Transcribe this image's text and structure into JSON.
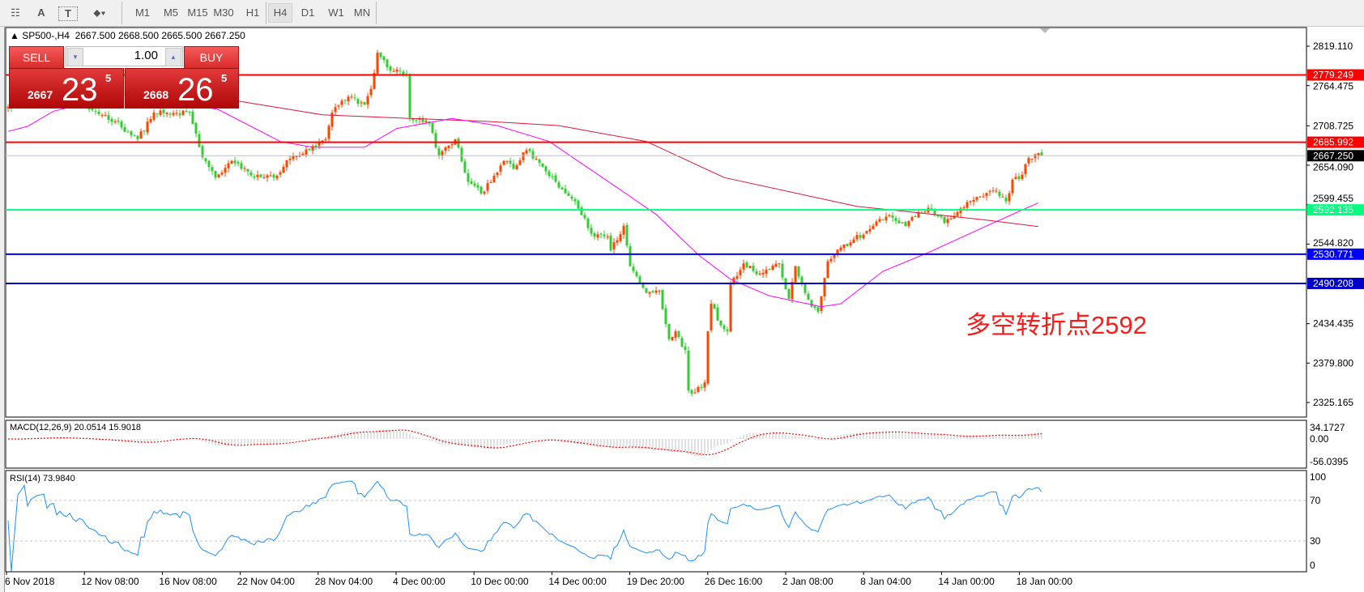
{
  "toolbar": {
    "tools": [
      {
        "name": "fibonacci-fan-icon",
        "glyph": "☷"
      },
      {
        "name": "text-icon",
        "glyph": "A"
      },
      {
        "name": "text-label-icon",
        "glyph": "T"
      },
      {
        "name": "arrows-icon",
        "glyph": "⬥▾"
      }
    ],
    "timeframes": [
      "M1",
      "M5",
      "M15",
      "M30",
      "H1",
      "H4",
      "D1",
      "W1",
      "MN"
    ],
    "selected_timeframe": "H4"
  },
  "chart": {
    "title": "SP500-,H4  2667.500 2668.500 2665.500 2667.250",
    "trade_panel": {
      "sell_label": "SELL",
      "buy_label": "BUY",
      "lot": "1.00",
      "sell_price": {
        "prefix": "2667",
        "big": "23",
        "sup": "5"
      },
      "buy_price": {
        "prefix": "2668",
        "big": "26",
        "sup": "5"
      }
    },
    "annotation": "多空转折点2592",
    "price_axis_ticks": [
      "2819.110",
      "2764.475",
      "2708.725",
      "2654.090",
      "2599.455",
      "2544.820",
      "2434.435",
      "2379.800",
      "2325.165"
    ],
    "price_lines": [
      {
        "label": "2779.249",
        "value": 2779.249,
        "color": "#ff0000",
        "text": "#ffffff"
      },
      {
        "label": "2685.992",
        "value": 2685.992,
        "color": "#ff0000",
        "text": "#ffffff"
      },
      {
        "label": "2592.135",
        "value": 2592.135,
        "color": "#00ff7f",
        "text": "#ffffff"
      },
      {
        "label": "2530.771",
        "value": 2530.771,
        "color": "#0000ff",
        "text": "#ffffff"
      },
      {
        "label": "2490.208",
        "value": 2490.208,
        "color": "#0000cd",
        "text": "#ffffff"
      }
    ],
    "bid_line": {
      "label": "2667.250",
      "value": 2667.25,
      "color": "#000000"
    },
    "time_labels": [
      "6 Nov 2018",
      "12 Nov 08:00",
      "16 Nov 08:00",
      "22 Nov 04:00",
      "28 Nov 04:00",
      "4 Dec 00:00",
      "10 Dec 00:00",
      "14 Dec 00:00",
      "19 Dec 20:00",
      "26 Dec 16:00",
      "2 Jan 08:00",
      "8 Jan 04:00",
      "14 Jan 00:00",
      "18 Jan 00:00"
    ],
    "colors": {
      "bull": "#ff4500",
      "bear": "#32cd32"
    }
  },
  "macd": {
    "label": "MACD(12,26,9) 20.0514 15.9018",
    "ticks": [
      "34.1727",
      "0.00",
      "-56.0395"
    ]
  },
  "rsi": {
    "label": "RSI(14) 73.9840",
    "ticks": [
      "100",
      "70",
      "30",
      "0"
    ],
    "levels": [
      70,
      30
    ]
  },
  "chart_data": {
    "type": "candlestick",
    "price_range": [
      2325.165,
      2819.11
    ],
    "close_keypoints_by_bar": [
      [
        0,
        2735
      ],
      [
        10,
        2750
      ],
      [
        20,
        2740
      ],
      [
        27,
        2729
      ],
      [
        33,
        2715
      ],
      [
        40,
        2690
      ],
      [
        45,
        2727
      ],
      [
        50,
        2725
      ],
      [
        56,
        2727
      ],
      [
        60,
        2665
      ],
      [
        64,
        2637
      ],
      [
        69,
        2660
      ],
      [
        75,
        2640
      ],
      [
        82,
        2637
      ],
      [
        87,
        2663
      ],
      [
        93,
        2675
      ],
      [
        98,
        2690
      ],
      [
        100,
        2727
      ],
      [
        105,
        2749
      ],
      [
        110,
        2738
      ],
      [
        112,
        2760
      ],
      [
        114,
        2810
      ],
      [
        117,
        2790
      ],
      [
        123,
        2779
      ],
      [
        124,
        2720
      ],
      [
        130,
        2712
      ],
      [
        133,
        2667
      ],
      [
        138,
        2690
      ],
      [
        142,
        2631
      ],
      [
        146,
        2615
      ],
      [
        153,
        2660
      ],
      [
        156,
        2649
      ],
      [
        160,
        2675
      ],
      [
        165,
        2652
      ],
      [
        170,
        2623
      ],
      [
        175,
        2604
      ],
      [
        180,
        2559
      ],
      [
        185,
        2555
      ],
      [
        186,
        2536
      ],
      [
        190,
        2570
      ],
      [
        192,
        2514
      ],
      [
        197,
        2477
      ],
      [
        201,
        2480
      ],
      [
        204,
        2413
      ],
      [
        206,
        2424
      ],
      [
        209,
        2398
      ],
      [
        210,
        2342
      ],
      [
        212,
        2339
      ],
      [
        215,
        2353
      ],
      [
        216,
        2424
      ],
      [
        217,
        2462
      ],
      [
        220,
        2432
      ],
      [
        222,
        2424
      ],
      [
        223,
        2491
      ],
      [
        227,
        2518
      ],
      [
        232,
        2504
      ],
      [
        238,
        2518
      ],
      [
        241,
        2469
      ],
      [
        243,
        2514
      ],
      [
        248,
        2458
      ],
      [
        250,
        2451
      ],
      [
        253,
        2521
      ],
      [
        257,
        2540
      ],
      [
        260,
        2547
      ],
      [
        265,
        2563
      ],
      [
        267,
        2570
      ],
      [
        272,
        2585
      ],
      [
        277,
        2570
      ],
      [
        281,
        2589
      ],
      [
        285,
        2592
      ],
      [
        289,
        2574
      ],
      [
        293,
        2589
      ],
      [
        297,
        2604
      ],
      [
        301,
        2611
      ],
      [
        304,
        2619
      ],
      [
        308,
        2604
      ],
      [
        310,
        2634
      ],
      [
        313,
        2641
      ],
      [
        315,
        2664
      ],
      [
        318,
        2671
      ],
      [
        319,
        2667.25
      ]
    ],
    "moving_averages": [
      {
        "color": "#dc143c",
        "points": [
          [
            55,
            2748
          ],
          [
            71,
            2743
          ],
          [
            97,
            2724
          ],
          [
            124,
            2719
          ],
          [
            147,
            2715
          ],
          [
            170,
            2709
          ],
          [
            197,
            2687
          ],
          [
            221,
            2637
          ],
          [
            262,
            2597
          ],
          [
            275,
            2591
          ],
          [
            302,
            2578
          ],
          [
            318,
            2569
          ]
        ]
      },
      {
        "color": "#ff00ff",
        "points": [
          [
            0,
            2701
          ],
          [
            6,
            2708
          ],
          [
            14,
            2729
          ],
          [
            35,
            2752
          ],
          [
            47,
            2748
          ],
          [
            65,
            2731
          ],
          [
            84,
            2687
          ],
          [
            94,
            2679
          ],
          [
            110,
            2679
          ],
          [
            120,
            2705
          ],
          [
            137,
            2719
          ],
          [
            151,
            2709
          ],
          [
            167,
            2687
          ],
          [
            188,
            2623
          ],
          [
            200,
            2586
          ],
          [
            213,
            2530
          ],
          [
            223,
            2496
          ],
          [
            235,
            2473
          ],
          [
            251,
            2458
          ],
          [
            257,
            2462
          ],
          [
            270,
            2507
          ],
          [
            284,
            2533
          ],
          [
            302,
            2570
          ],
          [
            318,
            2602
          ]
        ]
      }
    ]
  }
}
